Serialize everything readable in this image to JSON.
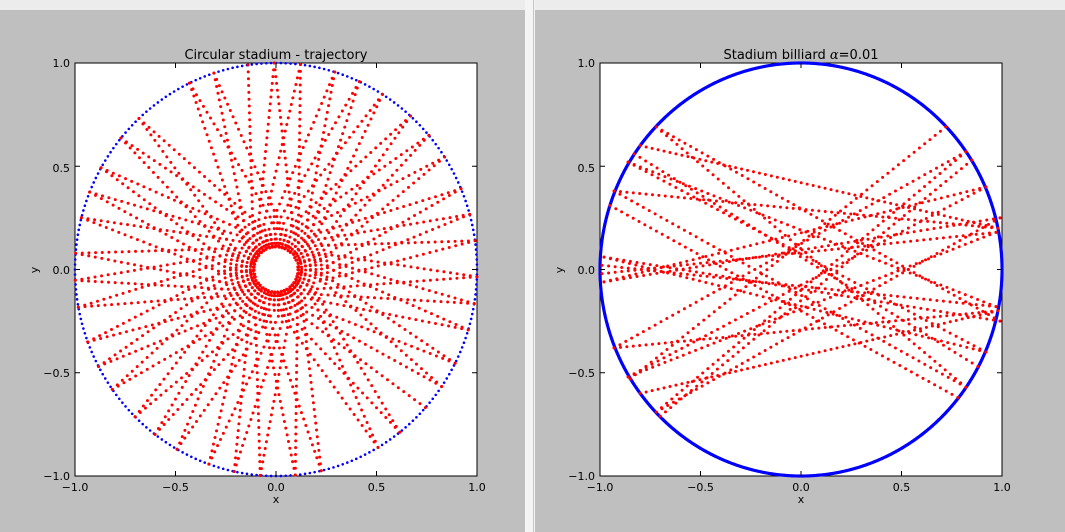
{
  "chart_data": [
    {
      "type": "scatter",
      "title": "Circular stadium - trajectory",
      "xlabel": "x",
      "ylabel": "y",
      "xlim": [
        -1.0,
        1.0
      ],
      "ylim": [
        -1.0,
        1.0
      ],
      "x_ticks": [
        "−1.0",
        "−0.5",
        "0.0",
        "0.5",
        "1.0"
      ],
      "y_ticks": [
        "1.0",
        "0.5",
        "0.0",
        "−0.5",
        "−1.0"
      ],
      "grid": false,
      "boundary": {
        "shape": "circle",
        "radius": 1.0,
        "color": "#0000ff",
        "marker": "dot"
      },
      "trajectory": {
        "color": "#ff0000",
        "marker": "dot",
        "points_per_chord": 60,
        "start_angle_deg": 98,
        "angle_step_deg": 167.5,
        "bounces": 40
      }
    },
    {
      "type": "scatter",
      "title": "Stadium billiard α=0.01",
      "title_prefix": "Stadium billiard ",
      "title_symbol": "α",
      "title_suffix": "=0.01",
      "xlabel": "x",
      "ylabel": "y",
      "xlim": [
        -1.0,
        1.0
      ],
      "ylim": [
        -1.0,
        1.0
      ],
      "x_ticks": [
        "−1.0",
        "−0.5",
        "0.0",
        "0.5",
        "1.0"
      ],
      "y_ticks": [
        "1.0",
        "0.5",
        "0.0",
        "−0.5",
        "−1.0"
      ],
      "grid": false,
      "boundary": {
        "shape": "circle",
        "radius": 1.0,
        "color": "#0000ff",
        "marker": "dot"
      },
      "trajectory": {
        "color": "#ff0000",
        "marker": "dot",
        "points_per_chord": 60,
        "chords": [
          [
            [
              -0.8,
              0.6
            ],
            [
              0.98,
              0.2
            ]
          ],
          [
            [
              0.98,
              0.2
            ],
            [
              -0.93,
              0.38
            ]
          ],
          [
            [
              -0.93,
              0.38
            ],
            [
              0.82,
              -0.57
            ]
          ],
          [
            [
              0.82,
              -0.57
            ],
            [
              -0.72,
              0.69
            ]
          ],
          [
            [
              -0.72,
              0.69
            ],
            [
              0.99,
              -0.25
            ]
          ],
          [
            [
              0.99,
              -0.25
            ],
            [
              -0.98,
              0.06
            ]
          ],
          [
            [
              -0.98,
              0.06
            ],
            [
              0.92,
              -0.4
            ]
          ],
          [
            [
              0.92,
              -0.4
            ],
            [
              -0.86,
              0.52
            ]
          ],
          [
            [
              -0.86,
              0.52
            ],
            [
              0.97,
              -0.18
            ]
          ],
          [
            [
              0.97,
              -0.18
            ],
            [
              -0.99,
              0.02
            ]
          ],
          [
            [
              -0.8,
              -0.6
            ],
            [
              0.98,
              -0.2
            ]
          ],
          [
            [
              0.98,
              -0.2
            ],
            [
              -0.93,
              -0.38
            ]
          ],
          [
            [
              -0.93,
              -0.38
            ],
            [
              0.82,
              0.57
            ]
          ],
          [
            [
              0.82,
              0.57
            ],
            [
              -0.72,
              -0.69
            ]
          ],
          [
            [
              -0.72,
              -0.69
            ],
            [
              0.99,
              0.25
            ]
          ],
          [
            [
              0.99,
              0.25
            ],
            [
              -0.98,
              -0.06
            ]
          ],
          [
            [
              -0.98,
              -0.06
            ],
            [
              0.92,
              0.4
            ]
          ],
          [
            [
              0.92,
              0.4
            ],
            [
              -0.86,
              -0.52
            ]
          ],
          [
            [
              -0.86,
              -0.52
            ],
            [
              0.97,
              0.18
            ]
          ],
          [
            [
              0.97,
              0.18
            ],
            [
              -0.99,
              -0.02
            ]
          ],
          [
            [
              0.72,
              0.69
            ],
            [
              -0.85,
              -0.53
            ]
          ],
          [
            [
              0.85,
              0.53
            ],
            [
              -0.7,
              -0.71
            ]
          ],
          [
            [
              0.78,
              -0.62
            ],
            [
              -0.95,
              0.31
            ]
          ],
          [
            [
              0.88,
              -0.47
            ],
            [
              -0.83,
              0.56
            ]
          ]
        ]
      }
    }
  ]
}
